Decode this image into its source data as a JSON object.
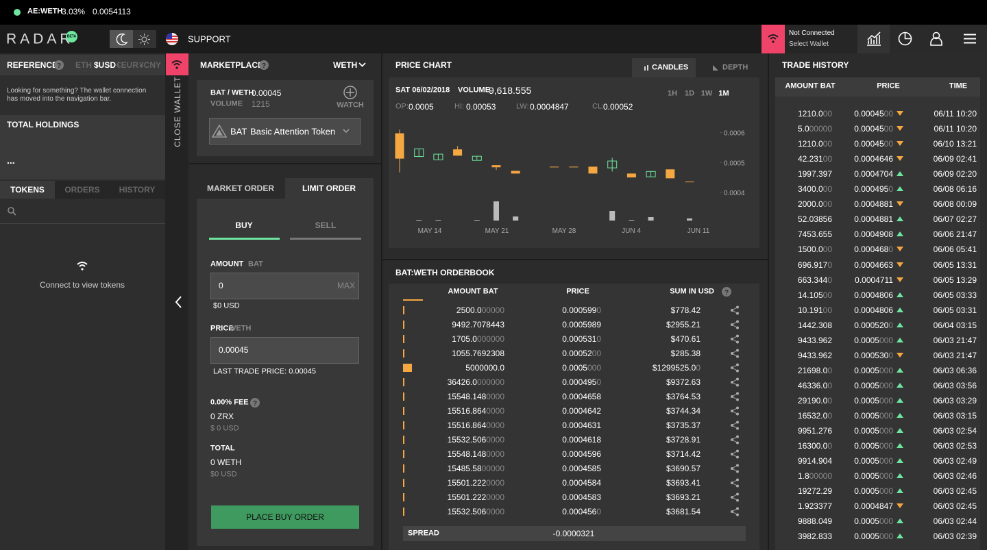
{
  "ticker": {
    "pair": "AE:WETH",
    "change": "3.03%",
    "price": "0.0054113"
  },
  "nav": {
    "logo": "RADAR",
    "beta": "BETA",
    "support": "SUPPORT",
    "wallet_status": "Not Connected",
    "wallet_action": "Select Wallet"
  },
  "wallet_panel": {
    "reference": "REFERENCE",
    "currencies": [
      "ETH",
      "$USD",
      "€EUR",
      "¥CNY"
    ],
    "active_currency": 1,
    "notice": [
      "Looking for something? The wallet connection",
      "has moved into the navigation bar."
    ],
    "holdings_title": "TOTAL HOLDINGS",
    "holdings_value": "...",
    "tabs": [
      "TOKENS",
      "ORDERS",
      "HISTORY"
    ],
    "empty": "Connect to view tokens",
    "close": "CLOSE WALLET"
  },
  "marketplace": {
    "title": "MARKETPLACE",
    "quote": "WETH",
    "pair": "BAT / WETH",
    "price": "0.00045",
    "volume_label": "VOLUME",
    "volume": "1215",
    "watch": "WATCH",
    "token_symbol": "BAT",
    "token_name": "Basic Attention Token"
  },
  "order_form": {
    "tabs": [
      "MARKET ORDER",
      "LIMIT ORDER"
    ],
    "sides": [
      "BUY",
      "SELL"
    ],
    "amount_label": "AMOUNT",
    "amount_unit": "BAT",
    "amount": "0",
    "max": "MAX",
    "amount_usd": "$0 USD",
    "price_label": "PRICE",
    "price_unit": "WETH",
    "price": "0.00045",
    "last_trade": "LAST TRADE PRICE: 0.00045",
    "fee_label": "0.00% FEE",
    "fee": "0 ZRX",
    "fee_usd": "$ 0 USD",
    "total_label": "TOTAL",
    "total": "0 WETH",
    "total_usd": "$0 USD",
    "submit": "PLACE BUY ORDER"
  },
  "price_chart": {
    "title": "PRICE CHART",
    "tabs": [
      "CANDLES",
      "DEPTH"
    ],
    "date": "SAT 06/02/2018",
    "volume_label": "VOLUME",
    "volume": "9,618.555",
    "ranges": [
      "1H",
      "1D",
      "1W",
      "1M"
    ],
    "ohlc": [
      {
        "label": "OP:",
        "value": "0.0005"
      },
      {
        "label": "HI:",
        "value": "0.00053"
      },
      {
        "label": "LW:",
        "value": "0.0004847"
      },
      {
        "label": "CL:",
        "value": "0.00052"
      }
    ],
    "ylim": [
      0.00031,
      0.00062
    ],
    "yticks": [
      0.0004,
      0.0005,
      0.0006
    ],
    "xticks": [
      "MAY 14",
      "MAY 21",
      "MAY 28",
      "JUN 4",
      "JUN 11"
    ],
    "up_color": "#6ee6a0",
    "down_color": "#f5a742",
    "candles": [
      {
        "open": 0.000598,
        "high": 0.00061,
        "low": 0.000467,
        "close": 0.000513
      },
      {
        "open": 0.00052,
        "high": 0.000546,
        "low": 0.00052,
        "close": 0.000546
      },
      {
        "open": 0.000509,
        "high": 0.000528,
        "low": 0.000509,
        "close": 0.000528
      },
      {
        "open": 0.000544,
        "high": 0.000555,
        "low": 0.000523,
        "close": 0.000523
      },
      {
        "open": 0.000507,
        "high": 0.000521,
        "low": 0.000507,
        "close": 0.000521
      },
      {
        "open": 0.000491,
        "high": 0.000491,
        "low": 0.000475,
        "close": 0.000484
      },
      {
        "open": 0.000472,
        "high": 0.000472,
        "low": 0.000463,
        "close": 0.000463
      },
      null,
      {
        "open": 0.000486,
        "high": 0.000486,
        "low": 0.000486,
        "close": 0.000486
      },
      {
        "open": 0.000486,
        "high": 0.000486,
        "low": 0.000486,
        "close": 0.000486
      },
      {
        "open": 0.000486,
        "high": 0.000486,
        "low": 0.000463,
        "close": 0.000463
      },
      {
        "open": 0.000482,
        "high": 0.000516,
        "low": 0.00047,
        "close": 0.000505
      },
      {
        "open": 0.000463,
        "high": 0.000463,
        "low": 0.00045,
        "close": 0.00045
      },
      {
        "open": 0.000452,
        "high": 0.00047,
        "low": 0.000452,
        "close": 0.00047
      },
      {
        "open": 0.000477,
        "high": 0.000477,
        "low": 0.000447,
        "close": 0.000447
      },
      {
        "open": 0.000436,
        "high": 0.000436,
        "low": 0.000436,
        "close": 0.000436
      }
    ],
    "volumes": [
      0,
      300,
      300,
      0,
      300,
      9000,
      1900,
      null,
      0,
      0,
      0,
      4500,
      300,
      1600,
      0,
      1000
    ]
  },
  "orderbook": {
    "title": "BAT:WETH ORDERBOOK",
    "headers": [
      "AMOUNT BAT",
      "PRICE",
      "SUM IN USD"
    ],
    "spread_label": "SPREAD",
    "spread": "-0.0000321",
    "rows": [
      {
        "amount": "2500.0",
        "amount_pad": "00000",
        "price": "0.000599",
        "price_pad": "0",
        "sum": "$778.42"
      },
      {
        "amount": "9492.7078443",
        "price": "0.0005989",
        "sum": "$2955.21"
      },
      {
        "amount": "1705.0",
        "amount_pad": "000000",
        "price": "0.000531",
        "price_pad": "0",
        "sum": "$470.61"
      },
      {
        "amount": "1055.7692308",
        "price": "0.00052",
        "price_pad": "00",
        "sum": "$285.38"
      },
      {
        "amount": "5000000.0",
        "price": "0.0005",
        "price_pad": "000",
        "sum": "$1299525.0",
        "sum_pad": "0"
      },
      {
        "amount": "36426.0",
        "amount_pad": "000000",
        "price": "0.000495",
        "price_pad": "0",
        "sum": "$9372.63"
      },
      {
        "amount": "15548.148",
        "amount_pad": "0000",
        "price": "0.0004658",
        "sum": "$3764.53"
      },
      {
        "amount": "15516.864",
        "amount_pad": "0000",
        "price": "0.0004642",
        "sum": "$3744.34"
      },
      {
        "amount": "15516.864",
        "amount_pad": "0000",
        "price": "0.0004631",
        "sum": "$3735.37"
      },
      {
        "amount": "15532.506",
        "amount_pad": "0000",
        "price": "0.0004618",
        "sum": "$3728.91"
      },
      {
        "amount": "15548.148",
        "amount_pad": "0000",
        "price": "0.0004596",
        "sum": "$3714.42"
      },
      {
        "amount": "15485.58",
        "amount_pad": "00000",
        "price": "0.0004585",
        "sum": "$3690.57"
      },
      {
        "amount": "15501.222",
        "amount_pad": "0000",
        "price": "0.0004584",
        "sum": "$3693.41"
      },
      {
        "amount": "15501.222",
        "amount_pad": "0000",
        "price": "0.0004583",
        "sum": "$3693.21"
      },
      {
        "amount": "15532.506",
        "amount_pad": "0000",
        "price": "0.000456",
        "price_pad": "0",
        "sum": "$3681.54"
      }
    ]
  },
  "trade_history": {
    "title": "TRADE HISTORY",
    "headers": [
      "AMOUNT BAT",
      "PRICE",
      "TIME"
    ],
    "rows": [
      {
        "amount": "1210.0",
        "amount_pad": "00",
        "price": "0.00045",
        "price_pad": "00",
        "direction": "down",
        "time": "06/11 10:20"
      },
      {
        "amount": "5.0",
        "amount_pad": "00000",
        "price": "0.00045",
        "price_pad": "00",
        "direction": "down",
        "time": "06/11 10:20"
      },
      {
        "amount": "1210.0",
        "amount_pad": "00",
        "price": "0.00045",
        "price_pad": "00",
        "direction": "down",
        "time": "06/10 13:21"
      },
      {
        "amount": "42.231",
        "amount_pad": "00",
        "price": "0.0004646",
        "direction": "down",
        "time": "06/09 02:41"
      },
      {
        "amount": "1997.397",
        "price": "0.0004704",
        "direction": "up",
        "time": "06/09 02:20"
      },
      {
        "amount": "3400.0",
        "amount_pad": "00",
        "price": "0.000495",
        "price_pad": "0",
        "direction": "up",
        "time": "06/08 06:16"
      },
      {
        "amount": "2000.0",
        "amount_pad": "00",
        "price": "0.0004881",
        "direction": "down",
        "time": "06/08 00:09"
      },
      {
        "amount": "52.03856",
        "price": "0.0004881",
        "direction": "up",
        "time": "06/07 02:27"
      },
      {
        "amount": "7453.655",
        "price": "0.0004908",
        "direction": "up",
        "time": "06/06 21:47"
      },
      {
        "amount": "1500.0",
        "amount_pad": "00",
        "price": "0.000468",
        "price_pad": "0",
        "direction": "down",
        "time": "06/06 05:41"
      },
      {
        "amount": "696.917",
        "amount_pad": "0",
        "price": "0.0004663",
        "direction": "down",
        "time": "06/05 13:31"
      },
      {
        "amount": "663.344",
        "amount_pad": "0",
        "price": "0.0004711",
        "direction": "down",
        "time": "06/05 13:29"
      },
      {
        "amount": "14.105",
        "amount_pad": "00",
        "price": "0.0004806",
        "direction": "up",
        "time": "06/05 03:33"
      },
      {
        "amount": "10.191",
        "amount_pad": "00",
        "price": "0.0004806",
        "direction": "up",
        "time": "06/05 03:31"
      },
      {
        "amount": "1442.308",
        "price": "0.000520",
        "price_pad": "0",
        "direction": "up",
        "time": "06/04 03:15"
      },
      {
        "amount": "9433.962",
        "price": "0.0005",
        "price_pad": "000",
        "direction": "up",
        "time": "06/03 21:47"
      },
      {
        "amount": "9433.962",
        "price": "0.000530",
        "price_pad": "0",
        "direction": "down",
        "time": "06/03 21:47"
      },
      {
        "amount": "21698.0",
        "amount_pad": "0",
        "price": "0.0005",
        "price_pad": "000",
        "direction": "up",
        "time": "06/03 06:36"
      },
      {
        "amount": "46336.0",
        "amount_pad": "0",
        "price": "0.0005",
        "price_pad": "000",
        "direction": "up",
        "time": "06/03 03:56"
      },
      {
        "amount": "29190.0",
        "amount_pad": "0",
        "price": "0.0005",
        "price_pad": "000",
        "direction": "up",
        "time": "06/03 03:29"
      },
      {
        "amount": "16532.0",
        "amount_pad": "0",
        "price": "0.0005",
        "price_pad": "000",
        "direction": "up",
        "time": "06/03 03:15"
      },
      {
        "amount": "9951.276",
        "price": "0.0005",
        "price_pad": "000",
        "direction": "up",
        "time": "06/03 02:54"
      },
      {
        "amount": "16300.0",
        "amount_pad": "0",
        "price": "0.0005",
        "price_pad": "000",
        "direction": "up",
        "time": "06/03 02:53"
      },
      {
        "amount": "9914.904",
        "price": "0.0005",
        "price_pad": "000",
        "direction": "up",
        "time": "06/03 02:49"
      },
      {
        "amount": "1.8",
        "amount_pad": "00000",
        "price": "0.0005",
        "price_pad": "000",
        "direction": "up",
        "time": "06/03 02:46"
      },
      {
        "amount": "19272.29",
        "price": "0.0005",
        "price_pad": "000",
        "direction": "up",
        "time": "06/03 02:45"
      },
      {
        "amount": "1.923377",
        "price": "0.0004847",
        "direction": "down",
        "time": "06/03 02:45"
      },
      {
        "amount": "9888.049",
        "price": "0.0005",
        "price_pad": "000",
        "direction": "up",
        "time": "06/03 02:44"
      },
      {
        "amount": "3982.833",
        "price": "0.0005",
        "price_pad": "000",
        "direction": "up",
        "time": "06/03 02:39"
      }
    ]
  }
}
